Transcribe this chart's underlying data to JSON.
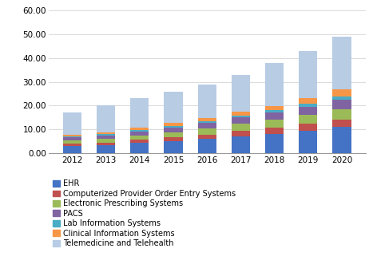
{
  "years": [
    2012,
    2013,
    2014,
    2015,
    2016,
    2017,
    2018,
    2019,
    2020
  ],
  "segments": {
    "EHR": [
      3.0,
      3.3,
      4.2,
      5.0,
      6.0,
      7.2,
      8.2,
      9.5,
      11.0
    ],
    "Computerized Provider Order Entry Systems": [
      1.0,
      1.2,
      1.4,
      1.6,
      1.8,
      2.1,
      2.5,
      2.8,
      3.2
    ],
    "Electronic Prescribing Systems": [
      1.4,
      1.6,
      1.9,
      2.2,
      2.5,
      3.0,
      3.3,
      3.8,
      4.3
    ],
    "PACS": [
      1.2,
      1.4,
      1.7,
      2.0,
      2.3,
      2.7,
      3.0,
      3.5,
      4.0
    ],
    "Lab Information Systems": [
      0.4,
      0.5,
      0.6,
      0.7,
      0.8,
      0.9,
      1.0,
      1.2,
      1.4
    ],
    "Clinical Information Systems": [
      0.7,
      0.8,
      0.9,
      1.2,
      1.4,
      1.6,
      1.8,
      2.3,
      2.8
    ],
    "Telemedicine and Telehealth": [
      9.3,
      11.2,
      12.3,
      13.3,
      14.2,
      15.5,
      18.2,
      20.0,
      22.3
    ]
  },
  "colors": {
    "EHR": "#4472C4",
    "Computerized Provider Order Entry Systems": "#C0504D",
    "Electronic Prescribing Systems": "#9BBB59",
    "PACS": "#8064A2",
    "Lab Information Systems": "#4BACC6",
    "Clinical Information Systems": "#F79646",
    "Telemedicine and Telehealth": "#B8CCE4"
  },
  "ylim": [
    0,
    60
  ],
  "yticks": [
    0,
    10,
    20,
    30,
    40,
    50,
    60
  ],
  "ytick_labels": [
    "0.00",
    "10.00",
    "20.00",
    "30.00",
    "40.00",
    "50.00",
    "60.00"
  ],
  "bar_width": 0.55,
  "legend_fontsize": 7.0,
  "tick_fontsize": 7.5,
  "background_color": "#FFFFFF"
}
